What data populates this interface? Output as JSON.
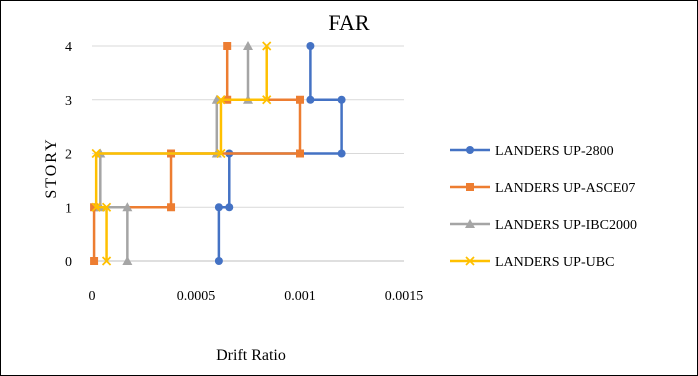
{
  "chart_data": {
    "type": "line",
    "title": "FAR",
    "xlabel": "Drift Ratio",
    "ylabel": "STORY",
    "xlim": [
      0,
      0.0015
    ],
    "ylim": [
      0,
      4
    ],
    "x_ticks": [
      {
        "value": 0,
        "label": "0"
      },
      {
        "value": 0.0005,
        "label": "0.0005"
      },
      {
        "value": 0.001,
        "label": "0.001"
      },
      {
        "value": 0.0015,
        "label": "0.0015"
      }
    ],
    "y_ticks": [
      {
        "value": 0,
        "label": "0"
      },
      {
        "value": 1,
        "label": "1"
      },
      {
        "value": 2,
        "label": "2"
      },
      {
        "value": 3,
        "label": "3"
      },
      {
        "value": 4,
        "label": "4"
      }
    ],
    "grid": {
      "horizontal": true,
      "vertical": false
    },
    "legend_position": "right",
    "series": [
      {
        "name": "LANDERS UP-2800",
        "color": "#4472C4",
        "marker": "circle",
        "points": [
          [
            0.00061,
            0
          ],
          [
            0.00061,
            1
          ],
          [
            0.00066,
            1
          ],
          [
            0.00066,
            2
          ],
          [
            0.0012,
            2
          ],
          [
            0.0012,
            3
          ],
          [
            0.00105,
            3
          ],
          [
            0.00105,
            4
          ]
        ]
      },
      {
        "name": "LANDERS UP-ASCE07",
        "color": "#ED7D31",
        "marker": "square",
        "points": [
          [
            1e-05,
            0
          ],
          [
            1e-05,
            1
          ],
          [
            0.00038,
            1
          ],
          [
            0.00038,
            2
          ],
          [
            0.001,
            2
          ],
          [
            0.001,
            3
          ],
          [
            0.00065,
            3
          ],
          [
            0.00065,
            4
          ]
        ]
      },
      {
        "name": "LANDERS UP-IBC2000",
        "color": "#A5A5A5",
        "marker": "triangle",
        "points": [
          [
            0.00017,
            0
          ],
          [
            0.00017,
            1
          ],
          [
            4e-05,
            1
          ],
          [
            4e-05,
            2
          ],
          [
            0.0006,
            2
          ],
          [
            0.0006,
            3
          ],
          [
            0.00075,
            3
          ],
          [
            0.00075,
            4
          ]
        ]
      },
      {
        "name": "LANDERS UP-UBC",
        "color": "#FFC000",
        "marker": "x",
        "points": [
          [
            7e-05,
            0
          ],
          [
            7e-05,
            1
          ],
          [
            2e-05,
            1
          ],
          [
            2e-05,
            2
          ],
          [
            0.00062,
            2
          ],
          [
            0.00062,
            3
          ],
          [
            0.00084,
            3
          ],
          [
            0.00084,
            4
          ]
        ]
      }
    ]
  }
}
